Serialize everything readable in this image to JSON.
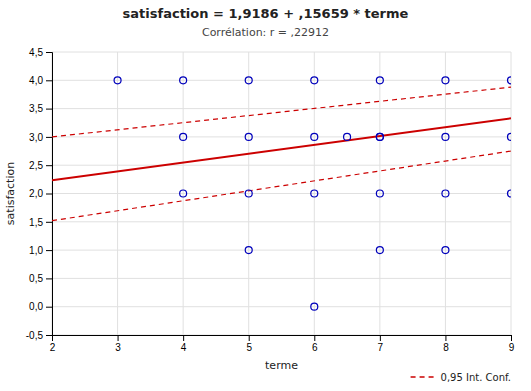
{
  "chart_data": {
    "type": "scatter",
    "title": "satisfaction = 1,9186 + ,15659 * terme",
    "subtitle": "Corrélation: r = ,22912",
    "x_label": "terme",
    "y_label": "satisfaction",
    "xlim": [
      2,
      9
    ],
    "ylim": [
      -0.5,
      4.5
    ],
    "xticks": [
      2,
      3,
      4,
      5,
      6,
      7,
      8,
      9
    ],
    "yticks": [
      {
        "value": -0.5,
        "label": "-0,5"
      },
      {
        "value": 0.0,
        "label": "0,0"
      },
      {
        "value": 0.5,
        "label": "0,5"
      },
      {
        "value": 1.0,
        "label": "1,0"
      },
      {
        "value": 1.5,
        "label": "1,5"
      },
      {
        "value": 2.0,
        "label": "2,0"
      },
      {
        "value": 2.5,
        "label": "2,5"
      },
      {
        "value": 3.0,
        "label": "3,0"
      },
      {
        "value": 3.5,
        "label": "3,5"
      },
      {
        "value": 4.0,
        "label": "4,0"
      },
      {
        "value": 4.5,
        "label": "4,5"
      }
    ],
    "grid": true,
    "legend": "bottom-right",
    "series": [
      {
        "type": "scatter",
        "color": "#0000bb",
        "marker": "circle",
        "x": [
          3,
          4,
          4,
          4,
          5,
          5,
          5,
          5,
          6,
          6,
          6,
          6,
          6.5,
          7,
          7,
          7,
          7,
          7,
          8,
          8,
          8,
          8,
          9,
          9,
          9
        ],
        "values": [
          4,
          4,
          3,
          2,
          4,
          3,
          2,
          1,
          4,
          3,
          2,
          0,
          3,
          4,
          3,
          3,
          2,
          1,
          4,
          3,
          2,
          1,
          4,
          3,
          2
        ]
      },
      {
        "type": "line",
        "color": "#cc0000",
        "line_style": "solid",
        "x": [
          2,
          9
        ],
        "values": [
          2.23178,
          3.32791
        ]
      },
      {
        "name": "0,95 Int. Conf.",
        "type": "line",
        "color": "#cc0000",
        "line_style": "dashed",
        "x": [
          2,
          9
        ],
        "values": [
          3.0,
          3.88
        ]
      },
      {
        "type": "line",
        "color": "#cc0000",
        "line_style": "dashed",
        "x": [
          2,
          9
        ],
        "values": [
          1.52,
          2.75
        ]
      }
    ]
  }
}
